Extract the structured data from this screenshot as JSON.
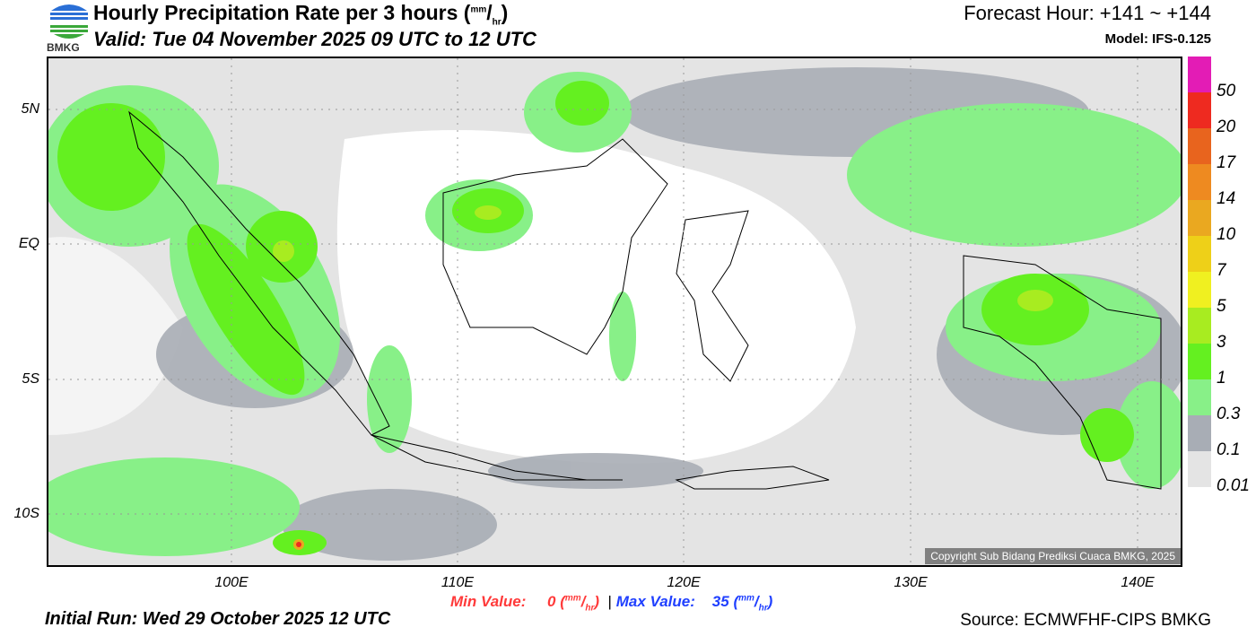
{
  "header": {
    "logo_text": "BMKG",
    "title": "Hourly Precipitation Rate per 3 hours (",
    "unit_num": "mm",
    "unit_den": "hr",
    "valid": "Valid: Tue 04 November 2025 09 UTC to 12 UTC",
    "forecast_hour": "Forecast Hour: +141 ~ +144",
    "model": "Model: IFS-0.125"
  },
  "map": {
    "lat_labels": [
      "5N",
      "EQ",
      "5S",
      "10S"
    ],
    "lon_labels": [
      "100E",
      "110E",
      "120E",
      "130E",
      "140E"
    ],
    "copyright": "Copyright Sub Bidang Prediksi Cuaca BMKG, 2025"
  },
  "colorbar": {
    "labels": [
      "50",
      "20",
      "17",
      "14",
      "10",
      "7",
      "5",
      "3",
      "1",
      "0.3",
      "0.1",
      "0.01"
    ],
    "colors": [
      "#e31cb5",
      "#ee2a20",
      "#e8641e",
      "#ee8a20",
      "#eaa820",
      "#eed018",
      "#f0f020",
      "#a8ec20",
      "#64f020",
      "#88f088",
      "#a8adb5",
      "#e4e4e4"
    ]
  },
  "footer": {
    "min_label": "Min Value:",
    "min_value": "0",
    "separator": "|",
    "max_label": "Max Value:",
    "max_value": "35",
    "unit_num": "mm",
    "unit_den": "hr",
    "initial_run": "Initial Run: Wed 29 October 2025 12 UTC",
    "source": "Source: ECMWFHF-CIPS BMKG"
  }
}
